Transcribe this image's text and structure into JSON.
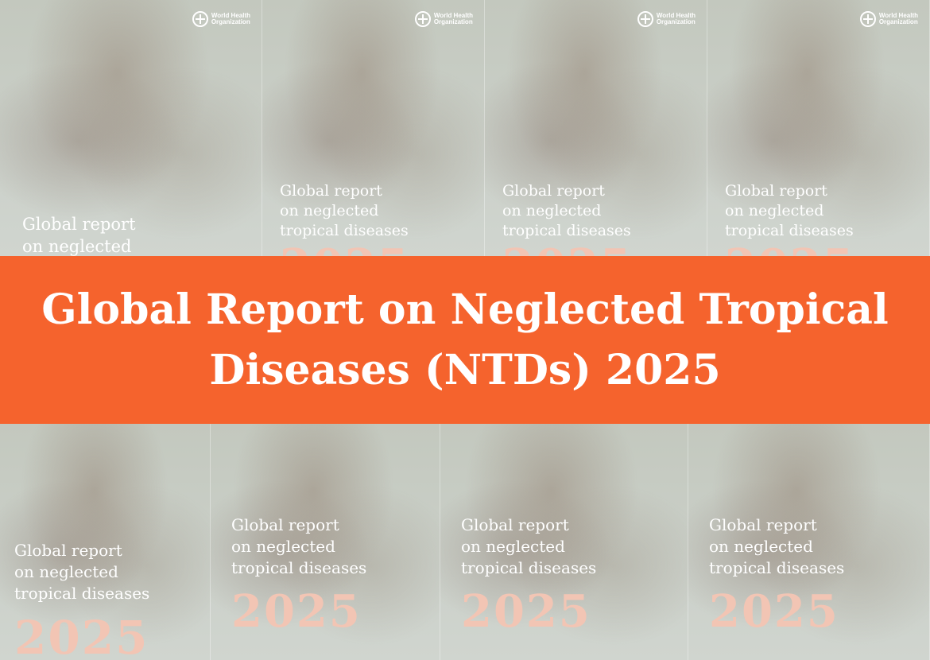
{
  "cover": {
    "org_name_line1": "World Health",
    "org_name_line2": "Organization",
    "logo_icon": "who-emblem-icon",
    "title_line1": "Global report",
    "title_line2": "on neglected",
    "title_line3": "tropical diseases",
    "year": "2025"
  },
  "banner": {
    "title_line1": "Global Report on Neglected Tropical",
    "title_line2": "Diseases (NTDs) 2025",
    "color": "#f5632d"
  }
}
